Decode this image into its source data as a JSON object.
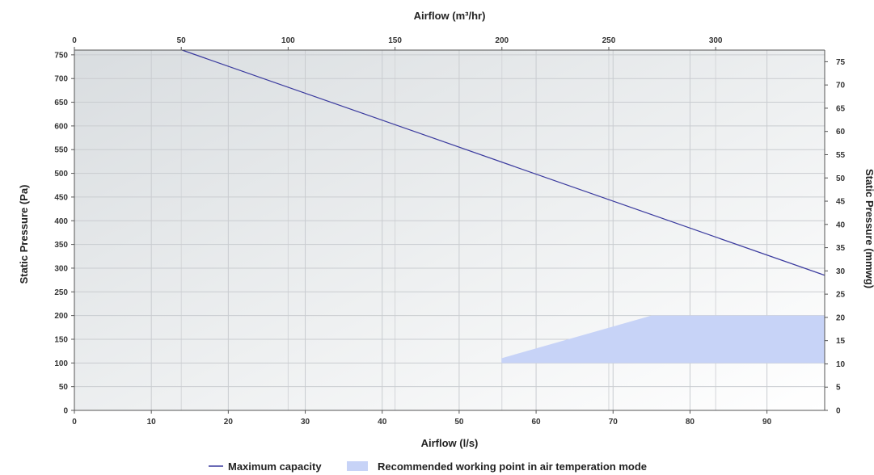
{
  "chart_data": {
    "type": "line",
    "axes": {
      "x_bottom": {
        "label": "Airflow (l/s)",
        "min": 0,
        "max": 97.5,
        "ticks": [
          0,
          10,
          20,
          30,
          40,
          50,
          60,
          70,
          80,
          90
        ],
        "tick_labels": [
          "0",
          "10",
          "20",
          "30",
          "40",
          "50",
          "60",
          "70",
          "80",
          "90"
        ]
      },
      "x_top": {
        "label": "Airflow (m³/hr)",
        "min": 0,
        "max": 351,
        "ticks": [
          0,
          50,
          100,
          150,
          200,
          250,
          300
        ],
        "tick_labels": [
          "0",
          "50",
          "100",
          "150",
          "200",
          "250",
          "300"
        ]
      },
      "y_left": {
        "label": "Static Pressure (Pa)",
        "min": 0,
        "max": 760,
        "ticks": [
          0,
          50,
          100,
          150,
          200,
          250,
          300,
          350,
          400,
          450,
          500,
          550,
          600,
          650,
          700,
          750
        ],
        "tick_labels": [
          "0",
          "50",
          "100",
          "150",
          "200",
          "250",
          "300",
          "350",
          "400",
          "450",
          "500",
          "550",
          "600",
          "650",
          "700",
          "750"
        ]
      },
      "y_right": {
        "label": "Static Pressure (mmwg)",
        "min": 0,
        "max": 77.5,
        "ticks": [
          0,
          5,
          10,
          15,
          20,
          25,
          30,
          35,
          40,
          45,
          50,
          55,
          60,
          65,
          70,
          75
        ],
        "tick_labels": [
          "0",
          "5",
          "10",
          "15",
          "20",
          "25",
          "30",
          "35",
          "40",
          "45",
          "50",
          "55",
          "60",
          "65",
          "70",
          "75"
        ]
      }
    },
    "grid": true,
    "series": [
      {
        "name": "Maximum capacity",
        "type": "line",
        "color": "#3a3a9e",
        "x": [
          14,
          97.5
        ],
        "y": [
          760,
          285
        ]
      },
      {
        "name": "Recommended working point in air temperation mode",
        "type": "area",
        "color": "#c7d3f7",
        "polygon": [
          [
            55.5,
            100
          ],
          [
            55.5,
            110
          ],
          [
            75,
            200
          ],
          [
            97.5,
            200
          ],
          [
            97.5,
            100
          ]
        ]
      }
    ],
    "legend_position": "bottom-center"
  }
}
